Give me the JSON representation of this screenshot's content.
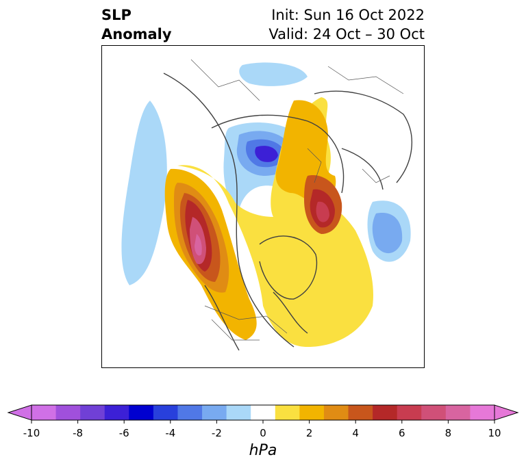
{
  "title": {
    "left_line1": "SLP",
    "left_line2": "Anomaly",
    "right_line1": "Init: Sun 16 Oct 2022",
    "right_line2": "Valid: 24 Oct – 30 Oct"
  },
  "colorbar": {
    "unit": "hPa",
    "ticks": [
      "-10",
      "-8",
      "-6",
      "-4",
      "-2",
      "0",
      "2",
      "4",
      "6",
      "8",
      "10"
    ],
    "colors": [
      "#d070e6",
      "#a050dc",
      "#7040d6",
      "#3c20d6",
      "#0000d0",
      "#2840dc",
      "#5078e6",
      "#78aaf0",
      "#aad8f8",
      "#ffffff",
      "#fae040",
      "#f2b400",
      "#e08c14",
      "#c8561c",
      "#b42828",
      "#c83c50",
      "#d05078",
      "#d864a0",
      "#e678d8"
    ],
    "min_color": "#d070e6",
    "max_color": "#e678d8"
  },
  "map": {
    "region": "Northern Hemisphere polar view"
  }
}
